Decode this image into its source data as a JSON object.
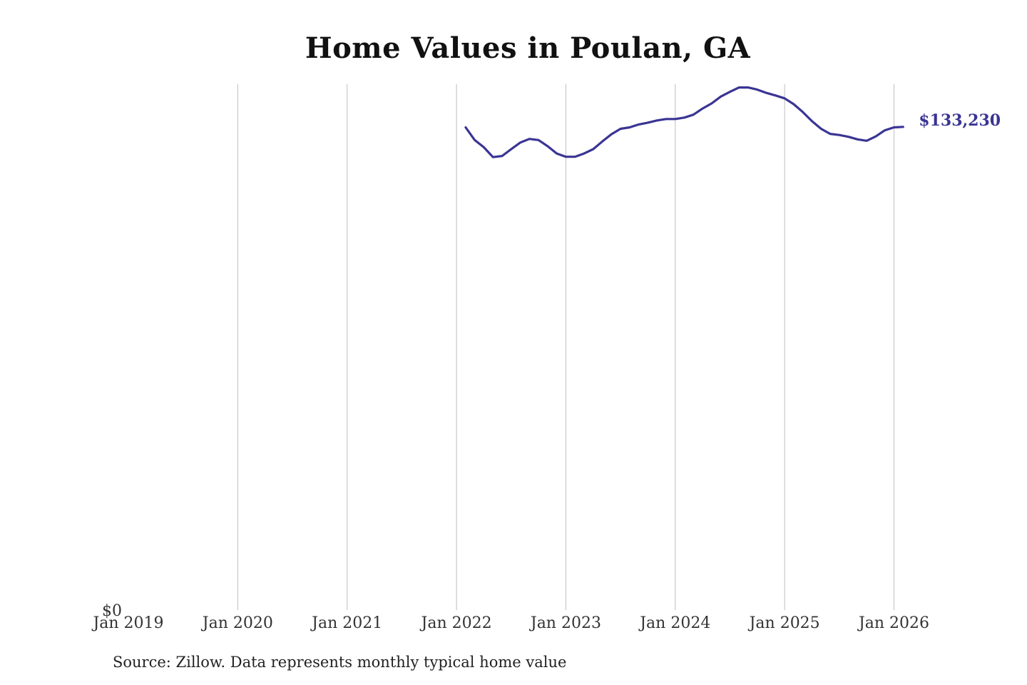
{
  "chart_data": {
    "type": "line",
    "title": "Home Values in Poulan, GA",
    "source_note": "Source: Zillow. Data represents monthly typical home value",
    "x_ticks": [
      "Jan 2019",
      "Jan 2020",
      "Jan 2021",
      "Jan 2022",
      "Jan 2023",
      "Jan 2024",
      "Jan 2025",
      "Jan 2026"
    ],
    "x_tick_years": [
      2019,
      2020,
      2021,
      2022,
      2023,
      2024,
      2025,
      2026
    ],
    "xlim": [
      "2019-01",
      "2026-02"
    ],
    "y_ticks": [
      0
    ],
    "y_tick_labels": [
      "$0"
    ],
    "ylim": [
      0,
      145000
    ],
    "grid": {
      "vertical": true,
      "horizontal": false
    },
    "legend": "none",
    "line_color": "#3a3494",
    "end_label": "$133,230",
    "series": [
      {
        "x": [
          "2022-02",
          "2022-03",
          "2022-04",
          "2022-05",
          "2022-06",
          "2022-07",
          "2022-08",
          "2022-09",
          "2022-10",
          "2022-11",
          "2022-12",
          "2023-01",
          "2023-02",
          "2023-03",
          "2023-04",
          "2023-05",
          "2023-06",
          "2023-07",
          "2023-08",
          "2023-09",
          "2023-10",
          "2023-11",
          "2023-12",
          "2024-01",
          "2024-02",
          "2024-03",
          "2024-04",
          "2024-05",
          "2024-06",
          "2024-07",
          "2024-08",
          "2024-09",
          "2024-10",
          "2024-11",
          "2024-12",
          "2025-01",
          "2025-02",
          "2025-03",
          "2025-04",
          "2025-05",
          "2025-06",
          "2025-07",
          "2025-08",
          "2025-09",
          "2025-10",
          "2025-11",
          "2025-12",
          "2026-01",
          "2026-02"
        ],
        "y": [
          133100,
          129600,
          127600,
          124900,
          125200,
          127100,
          128900,
          129900,
          129600,
          127900,
          125900,
          125000,
          125000,
          125900,
          127100,
          129200,
          131200,
          132700,
          133100,
          133900,
          134400,
          135000,
          135400,
          135400,
          135800,
          136600,
          138300,
          139700,
          141600,
          142900,
          144100,
          144100,
          143500,
          142600,
          141900,
          141100,
          139500,
          137300,
          134800,
          132700,
          131300,
          131000,
          130500,
          129800,
          129400,
          130600,
          132300,
          133100,
          133230
        ]
      }
    ]
  }
}
